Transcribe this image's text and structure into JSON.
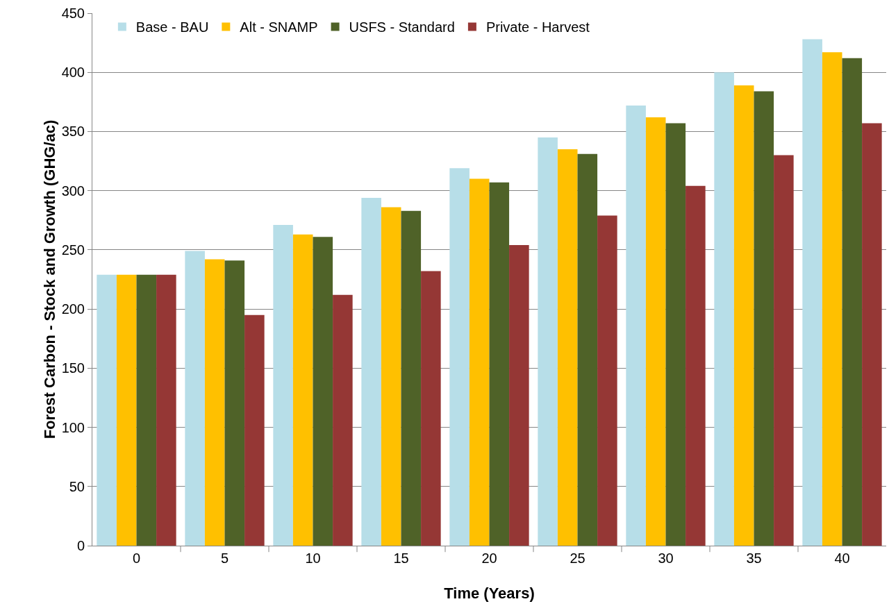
{
  "chart_data": {
    "type": "bar",
    "xlabel": "Time (Years)",
    "ylabel": "Forest Carbon - Stock and Growth (GHG/ac)",
    "categories": [
      "0",
      "5",
      "10",
      "15",
      "20",
      "25",
      "30",
      "35",
      "40"
    ],
    "series": [
      {
        "name": "Base - BAU",
        "color": "#b7dee8",
        "values": [
          229,
          249,
          271,
          294,
          319,
          345,
          372,
          400,
          428
        ]
      },
      {
        "name": "Alt - SNAMP",
        "color": "#ffc000",
        "values": [
          229,
          242,
          263,
          286,
          310,
          335,
          362,
          389,
          417
        ]
      },
      {
        "name": "USFS - Standard",
        "color": "#4f6228",
        "values": [
          229,
          241,
          261,
          283,
          307,
          331,
          357,
          384,
          412
        ]
      },
      {
        "name": "Private - Harvest",
        "color": "#953735",
        "values": [
          229,
          195,
          212,
          232,
          254,
          279,
          304,
          330,
          357
        ]
      }
    ],
    "ylim": [
      0,
      450
    ],
    "yticks": [
      0,
      50,
      100,
      150,
      200,
      250,
      300,
      350,
      400,
      450
    ],
    "grid": "y",
    "legend": "top left"
  }
}
